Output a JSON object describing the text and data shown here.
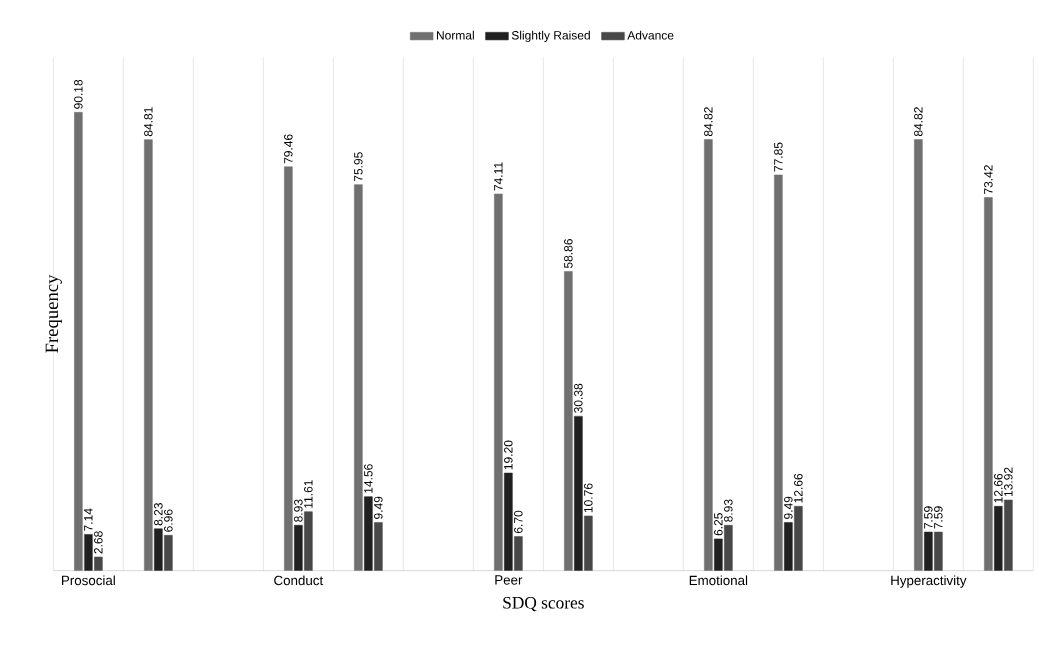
{
  "chart_data": {
    "type": "bar",
    "xlabel": "SDQ scores",
    "ylabel": "Frequency",
    "legend": "top",
    "grid": "x",
    "categories": [
      "Prosocial",
      null,
      "Conduct",
      null,
      "Peer",
      null,
      "Emotional",
      null,
      "Hyperactivity",
      null
    ],
    "series": [
      {
        "name": "Normal",
        "color": "#707070",
        "values": [
          90.18,
          84.81,
          79.46,
          75.95,
          74.11,
          58.86,
          84.82,
          77.85,
          84.82,
          73.42
        ],
        "value_labels": [
          "90.18",
          "84.81",
          "79.46",
          "75.95",
          "74.11",
          "58.86",
          "84.82",
          "77.85",
          "84.82",
          "73.42"
        ]
      },
      {
        "name": "Slightly Raised",
        "color": "#202020",
        "values": [
          7.14,
          8.23,
          8.93,
          14.56,
          19.2,
          30.38,
          6.25,
          9.49,
          7.59,
          12.66
        ],
        "value_labels": [
          "7.14",
          "8.23",
          "8.93",
          "14.56",
          "19.20",
          "30.38",
          "6.25",
          "9.49",
          "7.59",
          "12.66"
        ]
      },
      {
        "name": "Advance",
        "color": "#484848",
        "values": [
          2.68,
          6.96,
          11.61,
          9.49,
          6.7,
          10.76,
          8.93,
          12.66,
          7.59,
          13.92
        ],
        "value_labels": [
          "2.68",
          "6.96",
          "11.61",
          "9.49",
          "6.70",
          "10.76",
          "8.93",
          "12.66",
          "7.59",
          "13.92"
        ]
      }
    ]
  }
}
